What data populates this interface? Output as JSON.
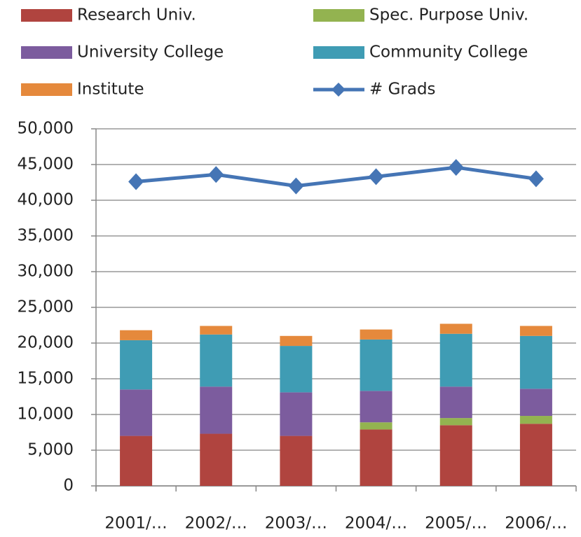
{
  "chart_data": {
    "type": "bar",
    "stacked": true,
    "categories": [
      "2001/…",
      "2002/…",
      "2003/…",
      "2004/…",
      "2005/…",
      "2006/…"
    ],
    "series": [
      {
        "name": "Research Univ.",
        "color": "#b0443f",
        "values": [
          7000,
          7300,
          7000,
          7900,
          8500,
          8700
        ]
      },
      {
        "name": "Spec. Purpose Univ.",
        "color": "#93b350",
        "values": [
          0,
          0,
          0,
          1000,
          1000,
          1100
        ]
      },
      {
        "name": "University College",
        "color": "#7c5c9e",
        "values": [
          6500,
          6600,
          6100,
          4400,
          4400,
          3800
        ]
      },
      {
        "name": "Community College",
        "color": "#3f9cb4",
        "values": [
          6900,
          7300,
          6500,
          7200,
          7400,
          7400
        ]
      },
      {
        "name": "Institute",
        "color": "#e5893c",
        "values": [
          1400,
          1200,
          1400,
          1400,
          1400,
          1400
        ]
      },
      {
        "name": "# Grads",
        "color": "#4575b5",
        "type": "line",
        "values": [
          42600,
          43600,
          42000,
          43300,
          44600,
          43000
        ]
      }
    ],
    "ylim": [
      0,
      50000
    ],
    "yticks": [
      0,
      {
        "value": 5000,
        "label": "5,000"
      },
      {
        "value": 10000,
        "label": "10,000"
      },
      {
        "value": 15000,
        "label": "15,000"
      },
      {
        "value": 20000,
        "label": "20,000"
      },
      {
        "value": 25000,
        "label": "25,000"
      },
      {
        "value": 30000,
        "label": "30,000"
      },
      {
        "value": 35000,
        "label": "35,000"
      },
      {
        "value": 40000,
        "label": "40,000"
      },
      {
        "value": 45000,
        "label": "45,000"
      },
      {
        "value": 50000,
        "label": "50,000"
      }
    ],
    "grid": true,
    "legend": "top"
  }
}
